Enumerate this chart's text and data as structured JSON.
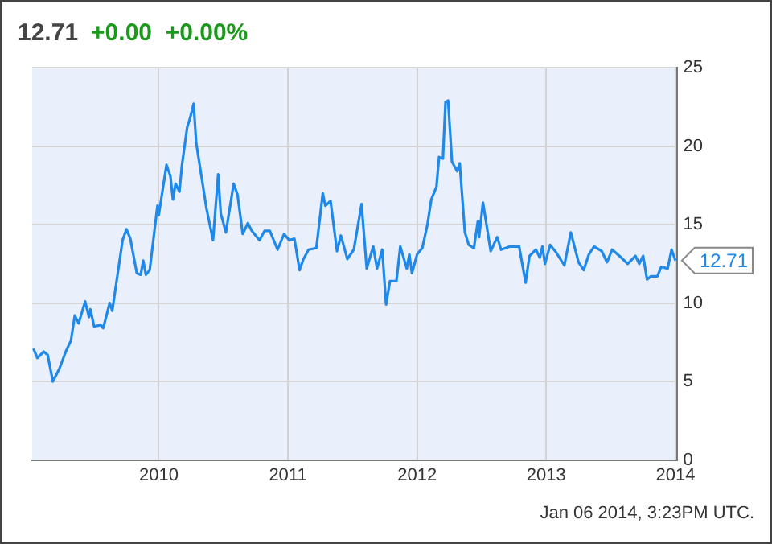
{
  "chart_data": {
    "type": "line",
    "title": "12.71",
    "subtitle": "+0.00  +0.00%",
    "x": [
      2009.03,
      2009.06,
      2009.11,
      2009.14,
      2009.18,
      2009.23,
      2009.28,
      2009.32,
      2009.35,
      2009.38,
      2009.43,
      2009.46,
      2009.47,
      2009.5,
      2009.55,
      2009.57,
      2009.62,
      2009.64,
      2009.67,
      2009.72,
      2009.75,
      2009.78,
      2009.83,
      2009.86,
      2009.88,
      2009.9,
      2009.93,
      2009.99,
      2010.0,
      2010.06,
      2010.09,
      2010.11,
      2010.13,
      2010.16,
      2010.18,
      2010.22,
      2010.24,
      2010.27,
      2010.29,
      2010.33,
      2010.37,
      2010.42,
      2010.46,
      2010.48,
      2010.52,
      2010.58,
      2010.61,
      2010.65,
      2010.69,
      2010.72,
      2010.78,
      2010.82,
      2010.86,
      2010.92,
      2010.97,
      2011.01,
      2011.05,
      2011.09,
      2011.12,
      2011.16,
      2011.22,
      2011.27,
      2011.29,
      2011.33,
      2011.38,
      2011.41,
      2011.46,
      2011.51,
      2011.57,
      2011.61,
      2011.66,
      2011.69,
      2011.73,
      2011.76,
      2011.79,
      2011.84,
      2011.87,
      2011.92,
      2011.94,
      2011.96,
      2012.0,
      2012.04,
      2012.08,
      2012.11,
      2012.15,
      2012.17,
      2012.2,
      2012.22,
      2012.24,
      2012.27,
      2012.31,
      2012.33,
      2012.37,
      2012.4,
      2012.44,
      2012.47,
      2012.48,
      2012.51,
      2012.57,
      2012.62,
      2012.65,
      2012.72,
      2012.79,
      2012.84,
      2012.87,
      2012.92,
      2012.95,
      2012.97,
      2012.99,
      2013.03,
      2013.07,
      2013.14,
      2013.19,
      2013.25,
      2013.29,
      2013.33,
      2013.37,
      2013.43,
      2013.47,
      2013.51,
      2013.58,
      2013.63,
      2013.69,
      2013.72,
      2013.75,
      2013.78,
      2013.81,
      2013.86,
      2013.89,
      2013.94,
      2013.97,
      2014.0
    ],
    "series": [
      {
        "color": "#1f88e8",
        "values": [
          7.1,
          6.5,
          6.9,
          6.7,
          5.0,
          5.8,
          6.9,
          7.6,
          9.2,
          8.7,
          10.1,
          9.1,
          9.6,
          8.5,
          8.6,
          8.4,
          10.0,
          9.5,
          11.2,
          14.0,
          14.7,
          14.1,
          11.9,
          11.8,
          12.7,
          11.8,
          12.1,
          16.2,
          15.6,
          18.8,
          18.1,
          16.6,
          17.6,
          17.1,
          18.8,
          21.2,
          21.7,
          22.7,
          20.2,
          18.1,
          16.0,
          14.0,
          18.2,
          15.7,
          14.5,
          17.6,
          16.9,
          14.4,
          15.1,
          14.6,
          14.0,
          14.6,
          14.6,
          13.4,
          14.4,
          14.0,
          14.1,
          12.1,
          12.8,
          13.4,
          13.5,
          17.0,
          16.2,
          16.5,
          13.3,
          14.3,
          12.8,
          13.4,
          16.3,
          12.2,
          13.6,
          12.2,
          13.4,
          9.9,
          11.4,
          11.4,
          13.6,
          12.2,
          13.1,
          11.9,
          13.1,
          13.5,
          15.0,
          16.6,
          17.4,
          19.3,
          19.2,
          22.8,
          22.9,
          19.0,
          18.4,
          18.9,
          14.5,
          13.7,
          13.5,
          15.2,
          14.2,
          16.4,
          13.3,
          14.2,
          13.4,
          13.6,
          13.6,
          11.3,
          13.0,
          13.4,
          12.9,
          13.6,
          12.5,
          13.7,
          13.3,
          12.4,
          14.5,
          12.6,
          12.1,
          13.1,
          13.6,
          13.3,
          12.6,
          13.4,
          12.9,
          12.5,
          13.0,
          12.5,
          13.0,
          11.5,
          11.7,
          11.7,
          12.3,
          12.2,
          13.4,
          12.71
        ]
      }
    ],
    "xlim": [
      2009.02,
      2014.01
    ],
    "xticks": [
      2010,
      2011,
      2012,
      2013,
      2014
    ],
    "ylim": [
      0,
      25
    ],
    "yticks": [
      0,
      5,
      10,
      15,
      20,
      25
    ],
    "annotations": [
      {
        "text": "12.71",
        "x": 2014.0,
        "y": 12.71
      },
      "Jan 06 2014, 3:23PM UTC."
    ],
    "grid": true,
    "legend": false,
    "marker": "none",
    "line_style": "solid"
  }
}
